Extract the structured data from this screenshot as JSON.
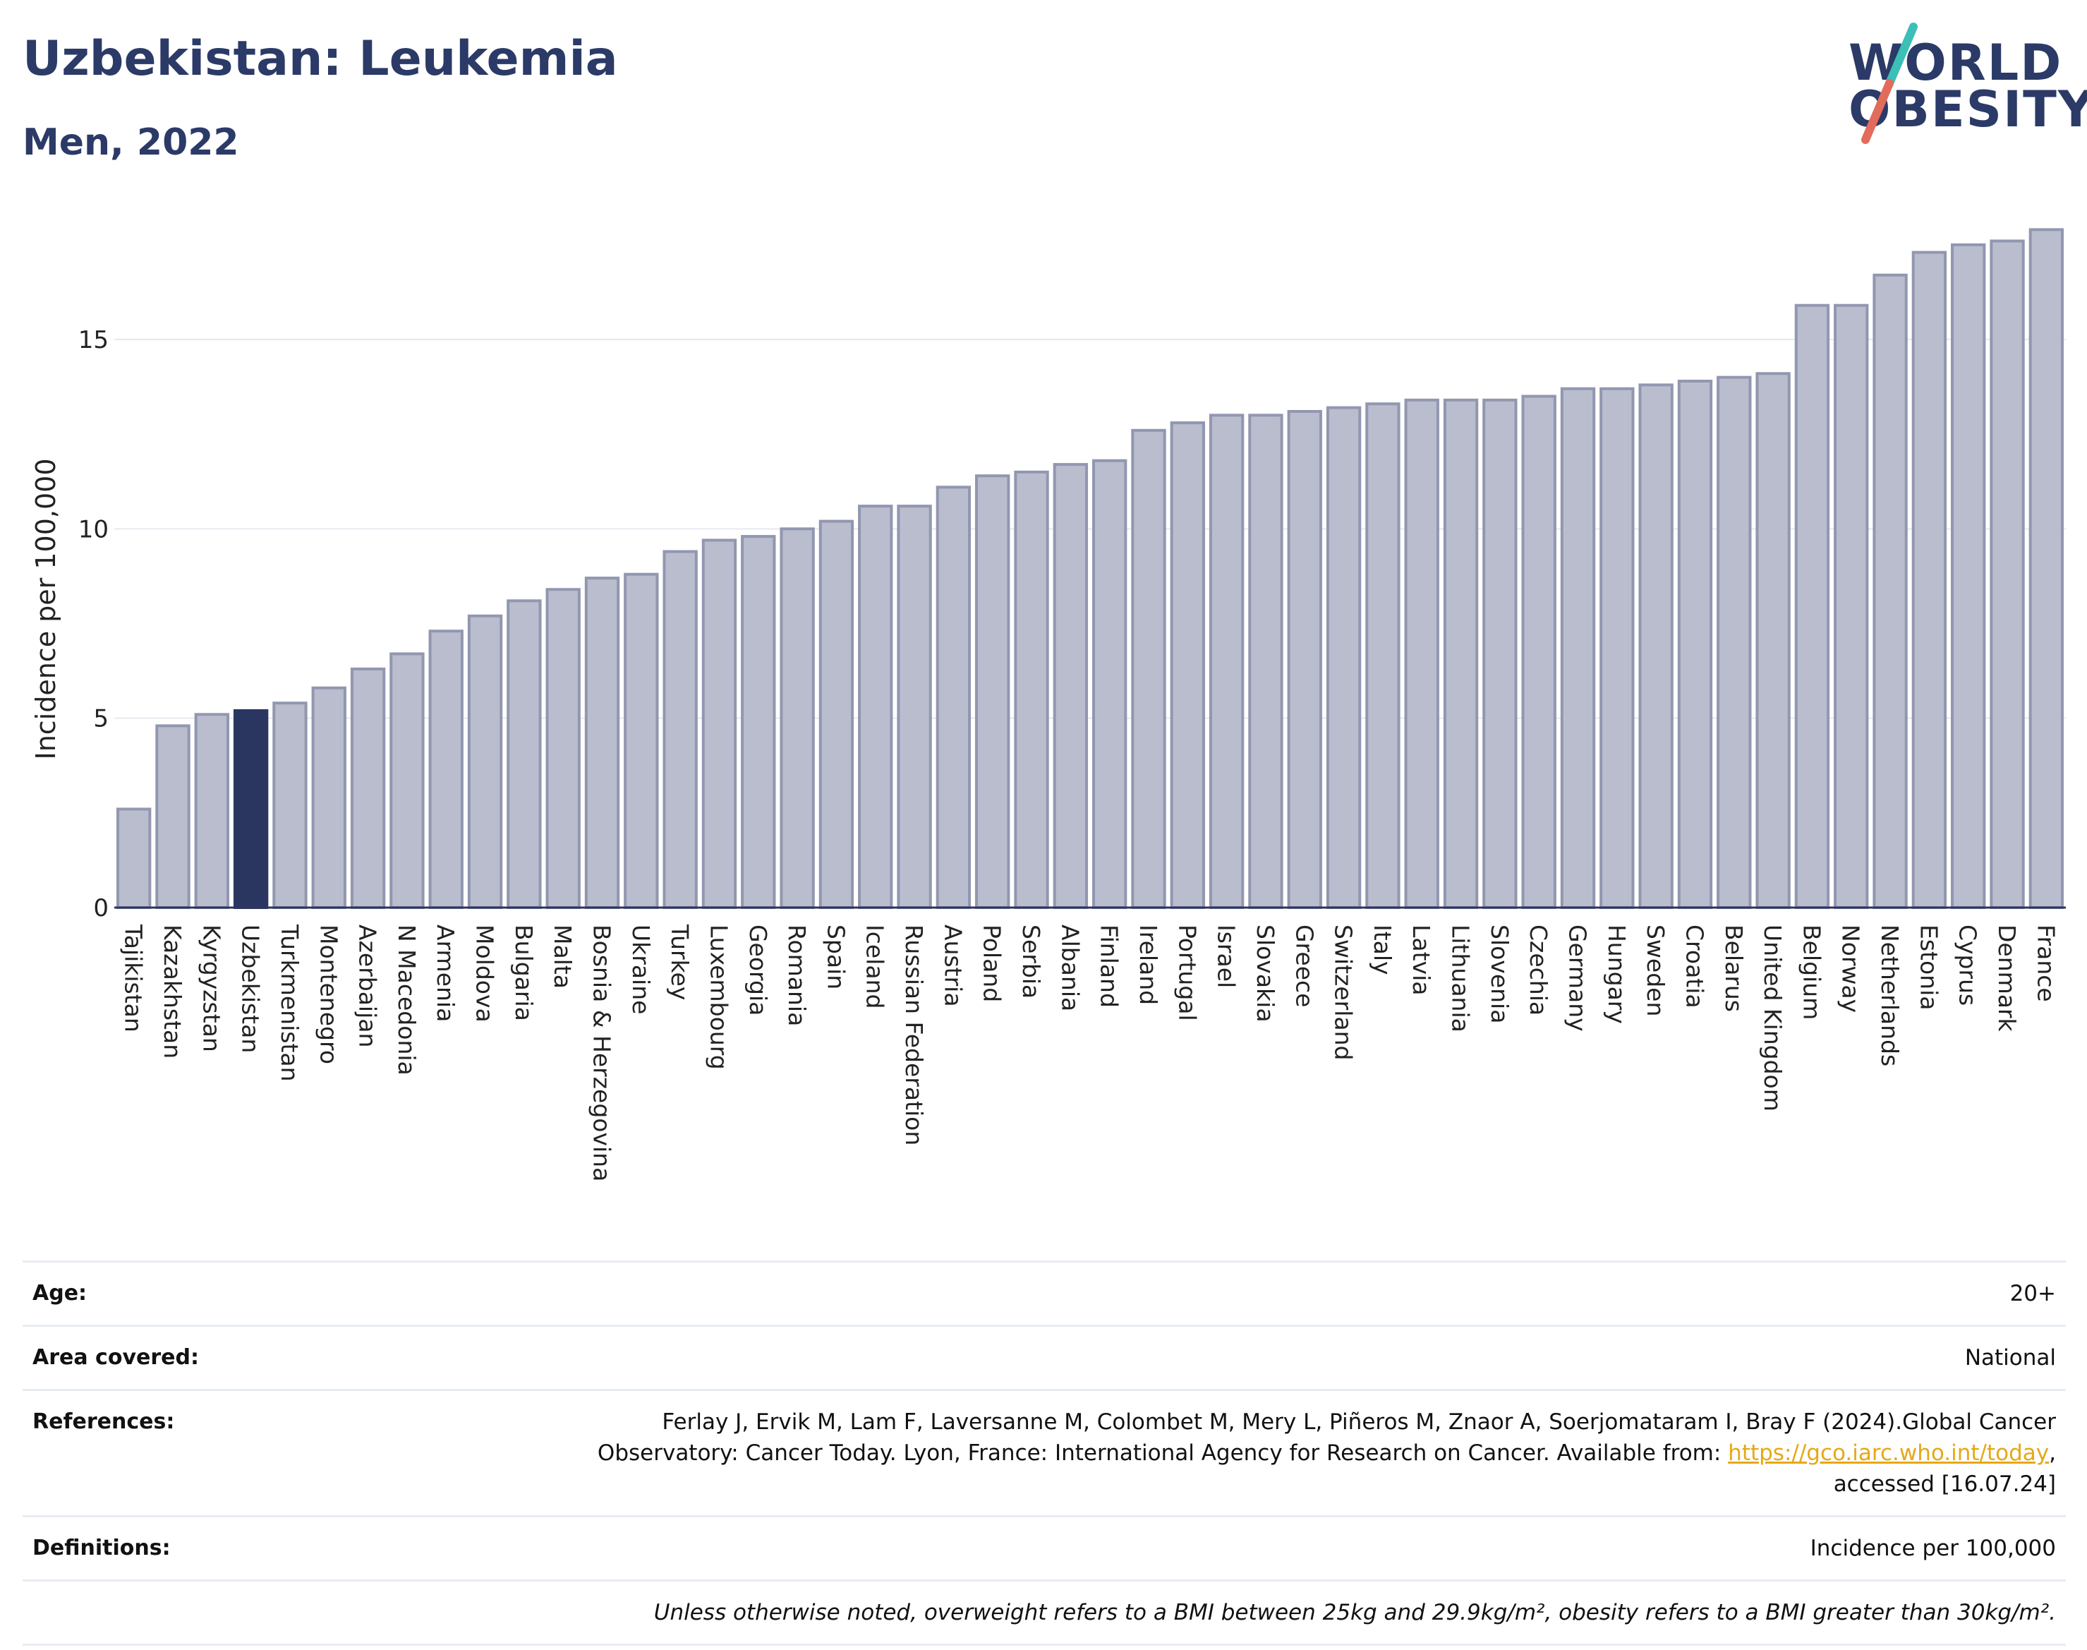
{
  "header": {
    "title": "Uzbekistan: Leukemia",
    "subtitle": "Men, 2022"
  },
  "logo": {
    "line1": "WORLD",
    "line2": "OBESITY"
  },
  "colors": {
    "bar_default": "#b9bdce",
    "bar_default_edge": "#9297b0",
    "bar_highlight": "#2b3660",
    "grid": "#e6e9ef",
    "logo_slash_teal": "#3bbfb6",
    "logo_slash_coral": "#e36b5c",
    "link": "#e6a817"
  },
  "chart_data": {
    "type": "bar",
    "title": "Uzbekistan: Leukemia",
    "subtitle": "Men, 2022",
    "xlabel": "",
    "ylabel": "Incidence per 100,000",
    "ylim": [
      0,
      18
    ],
    "yticks": [
      0,
      5,
      10,
      15
    ],
    "grid": true,
    "highlight": "Uzbekistan",
    "categories": [
      "Tajikistan",
      "Kazakhstan",
      "Kyrgyzstan",
      "Uzbekistan",
      "Turkmenistan",
      "Montenegro",
      "Azerbaijan",
      "N Macedonia",
      "Armenia",
      "Moldova",
      "Bulgaria",
      "Malta",
      "Bosnia & Herzegovina",
      "Ukraine",
      "Turkey",
      "Luxembourg",
      "Georgia",
      "Romania",
      "Spain",
      "Iceland",
      "Russian Federation",
      "Austria",
      "Poland",
      "Serbia",
      "Albania",
      "Finland",
      "Ireland",
      "Portugal",
      "Israel",
      "Slovakia",
      "Greece",
      "Switzerland",
      "Italy",
      "Latvia",
      "Lithuania",
      "Slovenia",
      "Czechia",
      "Germany",
      "Hungary",
      "Sweden",
      "Croatia",
      "Belarus",
      "United Kingdom",
      "Belgium",
      "Norway",
      "Netherlands",
      "Estonia",
      "Cyprus",
      "Denmark",
      "France"
    ],
    "values": [
      2.6,
      4.8,
      5.1,
      5.2,
      5.4,
      5.8,
      6.3,
      6.7,
      7.3,
      7.7,
      8.1,
      8.4,
      8.7,
      8.8,
      9.4,
      9.7,
      9.8,
      10.0,
      10.2,
      10.6,
      10.6,
      11.1,
      11.4,
      11.5,
      11.7,
      11.8,
      12.6,
      12.8,
      13.0,
      13.0,
      13.1,
      13.2,
      13.3,
      13.4,
      13.4,
      13.4,
      13.5,
      13.7,
      13.7,
      13.8,
      13.9,
      14.0,
      14.1,
      15.9,
      15.9,
      16.7,
      17.3,
      17.5,
      17.6,
      17.9
    ]
  },
  "info": {
    "age_label": "Age:",
    "age_value": "20+",
    "area_label": "Area covered:",
    "area_value": "National",
    "references_label": "References:",
    "references_line1": "Ferlay J, Ervik M, Lam F, Laversanne M, Colombet M, Mery L, Piñeros M, Znaor A, Soerjomataram I, Bray F (2024).Global Cancer",
    "references_line2": "Observatory: Cancer Today. Lyon, France: International Agency for Research on Cancer. Available from: ",
    "references_link": "https://gco.iarc.who.int/today",
    "references_line2_end": ",",
    "references_line3": "accessed [16.07.24]",
    "definitions_label": "Definitions:",
    "definitions_value": "Incidence per 100,000",
    "note": "Unless otherwise noted, overweight refers to a BMI between 25kg and 29.9kg/m², obesity refers to a BMI greater than 30kg/m²."
  }
}
